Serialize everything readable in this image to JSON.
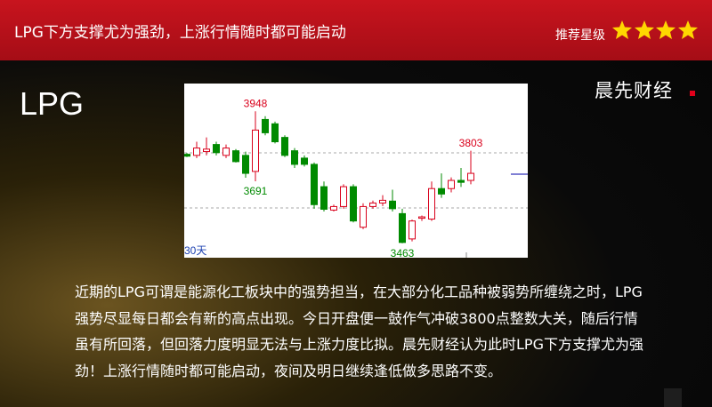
{
  "header": {
    "title": "LPG下方支撑尤为强劲，上涨行情随时都可能启动",
    "rating_label": "推荐星级"
  },
  "symbol": "LPG",
  "brand": "晨先财经",
  "chart_data": {
    "type": "candlestick",
    "period_label": "30天",
    "open": [
      3790,
      3786,
      3800,
      3826,
      3786,
      3803,
      3786,
      3727,
      3918,
      3902,
      3852,
      3803,
      3776,
      3753,
      3671,
      3585,
      3598,
      3671,
      3522,
      3598,
      3611,
      3618,
      3572,
      3479,
      3555,
      3552,
      3664,
      3664,
      3694,
      3694
    ],
    "high": [
      3795,
      3836,
      3852,
      3836,
      3826,
      3809,
      3800,
      3948,
      3930,
      3910,
      3860,
      3813,
      3786,
      3760,
      3690,
      3605,
      3680,
      3680,
      3610,
      3620,
      3640,
      3660,
      3590,
      3550,
      3565,
      3690,
      3720,
      3705,
      3740,
      3803
    ],
    "low": [
      3780,
      3776,
      3786,
      3786,
      3776,
      3760,
      3704,
      3691,
      3860,
      3830,
      3780,
      3740,
      3745,
      3590,
      3580,
      3580,
      3590,
      3540,
      3515,
      3590,
      3600,
      3580,
      3463,
      3470,
      3545,
      3545,
      3630,
      3650,
      3670,
      3680
    ],
    "close": [
      3783,
      3813,
      3809,
      3796,
      3813,
      3763,
      3720,
      3879,
      3869,
      3836,
      3786,
      3753,
      3753,
      3605,
      3588,
      3598,
      3671,
      3545,
      3598,
      3611,
      3621,
      3590,
      3466,
      3545,
      3560,
      3664,
      3644,
      3694,
      3687,
      3720
    ],
    "up_color": "#d9001b",
    "down_color": "#008a00",
    "ylim": [
      3410,
      4050
    ]
  },
  "body": "近期的LPG可谓是能源化工板块中的强势担当，在大部分化工品种被弱势所缠绕之时，LPG强势尽显每日都会有新的高点出现。今日开盘便一鼓作气冲破3800点整数大关，随后行情虽有所回落，但回落力度明显无法与上涨力度比拟。晨先财经认为此时LPG下方支撑尤为强劲！上涨行情随时都可能启动，夜间及明日继续逢低做多思路不变。"
}
